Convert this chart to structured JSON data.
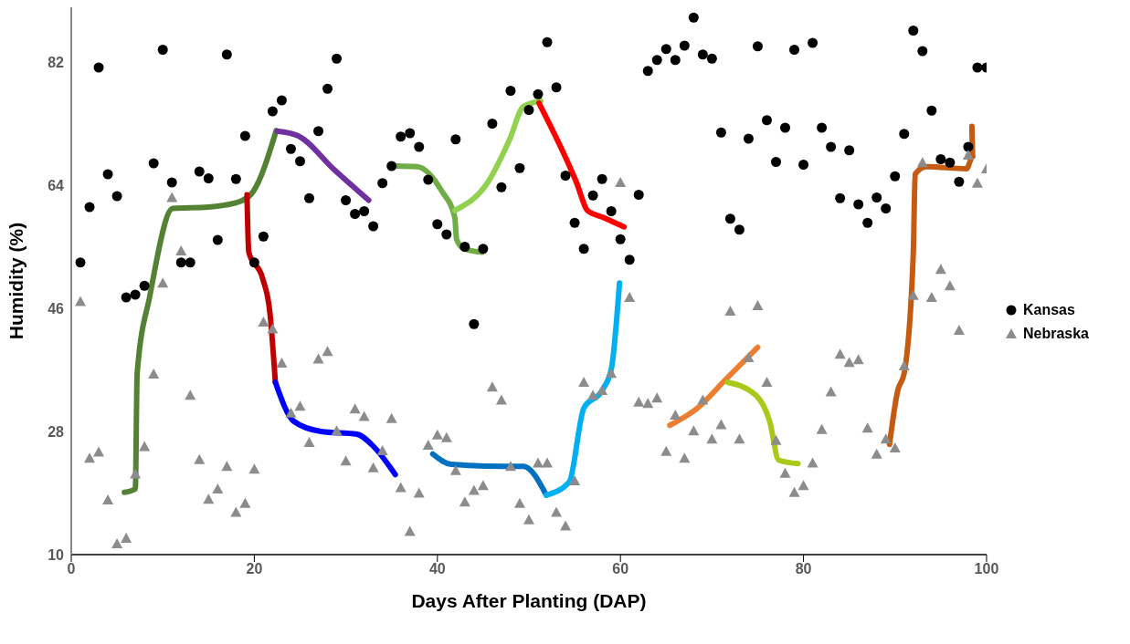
{
  "chart_data": {
    "type": "scatter",
    "xlabel": "Days After Planting (DAP)",
    "ylabel": "Humidity (%)",
    "xlim": [
      0,
      100
    ],
    "xticks": [
      0,
      20,
      40,
      60,
      80,
      100
    ],
    "ylim": [
      10,
      90
    ],
    "yticks": [
      10,
      28,
      46,
      64,
      82
    ],
    "grid": false,
    "legend": "right",
    "x": [
      1,
      2,
      3,
      4,
      5,
      6,
      7,
      8,
      9,
      10,
      11,
      12,
      13,
      14,
      15,
      16,
      17,
      18,
      19,
      20,
      21,
      22,
      23,
      24,
      25,
      26,
      27,
      28,
      29,
      30,
      31,
      32,
      33,
      34,
      35,
      36,
      37,
      38,
      39,
      40,
      41,
      42,
      43,
      44,
      45,
      46,
      47,
      48,
      49,
      50,
      51,
      52,
      53,
      54,
      55,
      56,
      57,
      58,
      59,
      60,
      61,
      62,
      63,
      64,
      65,
      66,
      67,
      68,
      69,
      70,
      71,
      72,
      73,
      74,
      75,
      76,
      77,
      78,
      79,
      80,
      81,
      82,
      83,
      84,
      85,
      86,
      87,
      88,
      89,
      90,
      91,
      92,
      93,
      94,
      95,
      96,
      97,
      98,
      99,
      100
    ],
    "series": [
      {
        "name": "Kansas",
        "marker": "circle",
        "color": "#000000",
        "values": [
          52.7,
          60.8,
          81.2,
          65.6,
          62.4,
          47.6,
          48.0,
          49.3,
          67.2,
          83.8,
          64.4,
          52.7,
          52.7,
          66.0,
          65.0,
          56.0,
          83.1,
          64.9,
          71.2,
          52.7,
          56.5,
          74.8,
          76.4,
          69.3,
          67.5,
          62.1,
          71.9,
          78.1,
          82.5,
          61.8,
          59.8,
          60.2,
          58.0,
          64.3,
          66.8,
          71.1,
          71.6,
          69.6,
          64.8,
          58.3,
          56.8,
          70.7,
          55.0,
          43.7,
          54.7,
          73.0,
          63.7,
          77.8,
          66.5,
          75.0,
          77.3,
          84.9,
          78.3,
          65.4,
          58.5,
          54.7,
          62.5,
          64.9,
          60.2,
          56.1,
          53.1,
          62.6,
          80.7,
          82.3,
          83.9,
          82.3,
          84.4,
          88.5,
          83.1,
          82.5,
          71.7,
          59.1,
          57.5,
          70.8,
          84.3,
          73.5,
          67.4,
          72.4,
          83.8,
          67.0,
          84.8,
          72.4,
          69.6,
          62.1,
          69.1,
          61.2,
          58.5,
          62.2,
          60.6,
          65.3,
          71.5,
          86.6,
          83.6,
          74.9,
          67.8,
          67.3,
          64.5,
          69.6,
          81.2,
          81.2
        ]
      },
      {
        "name": "Nebraska",
        "marker": "triangle",
        "color": "#8c8c8c",
        "values": [
          47.0,
          24.1,
          25.0,
          18.0,
          11.6,
          12.4,
          21.8,
          25.8,
          36.4,
          49.7,
          62.2,
          54.4,
          33.3,
          23.9,
          18.1,
          19.6,
          22.9,
          16.2,
          17.5,
          22.5,
          44.0,
          43.0,
          38.0,
          30.7,
          31.7,
          26.4,
          38.6,
          39.7,
          28.1,
          23.7,
          31.3,
          30.2,
          22.7,
          25.2,
          29.9,
          19.8,
          13.4,
          19.0,
          26.0,
          27.5,
          27.1,
          22.3,
          17.7,
          19.4,
          20.1,
          34.5,
          32.6,
          22.9,
          17.5,
          15.1,
          23.4,
          23.4,
          16.2,
          14.2,
          20.8,
          35.2,
          33.3,
          34.0,
          36.5,
          64.4,
          47.6,
          32.3,
          32.1,
          32.9,
          25.1,
          30.4,
          24.1,
          28.1,
          32.6,
          26.9,
          29.0,
          45.6,
          26.9,
          38.8,
          46.4,
          35.2,
          26.7,
          21.9,
          19.1,
          20.1,
          23.4,
          28.3,
          33.8,
          39.3,
          38.1,
          38.5,
          28.5,
          24.7,
          26.9,
          25.6,
          37.6,
          47.9,
          67.3,
          47.6,
          51.7,
          49.3,
          42.8,
          68.4,
          64.3,
          66.4
        ]
      },
      {
        "type": "line",
        "marker": "none",
        "color": "#548235",
        "x": [
          5.8,
          7.0,
          7.2,
          8.6,
          11.1,
          15.0,
          18.4,
          19.9,
          22.4
        ],
        "values": [
          19.1,
          19.6,
          36.5,
          47.9,
          60.6,
          60.8,
          61.6,
          63.1,
          72.0
        ]
      },
      {
        "type": "line",
        "marker": "none",
        "color": "#7030a0",
        "x": [
          22.5,
          24.8,
          28.7,
          32.5
        ],
        "values": [
          71.9,
          71.2,
          66.3,
          61.8
        ]
      },
      {
        "type": "line",
        "marker": "none",
        "color": "#c00000",
        "x": [
          19.2,
          19.4,
          20.9,
          21.7,
          22.3
        ],
        "values": [
          62.6,
          54.2,
          50.4,
          45.4,
          35.2
        ]
      },
      {
        "type": "line",
        "marker": "none",
        "color": "#0000ff",
        "x": [
          22.3,
          24.3,
          27.3,
          31.2,
          33.1,
          35.4
        ],
        "values": [
          35.2,
          29.5,
          28.0,
          27.6,
          25.7,
          21.7
        ]
      },
      {
        "type": "line",
        "marker": "none",
        "color": "#70ad47",
        "x": [
          35.6,
          37.8,
          40.5,
          41.9,
          42.1,
          42.9,
          44.9
        ],
        "values": [
          66.8,
          66.7,
          63.1,
          59.3,
          56.1,
          54.7,
          54.2
        ]
      },
      {
        "type": "line",
        "marker": "none",
        "color": "#92d050",
        "x": [
          41.9,
          45.5,
          47.9,
          49.4,
          51.3
        ],
        "values": [
          60.3,
          64.4,
          70.7,
          75.5,
          76.3
        ]
      },
      {
        "type": "line",
        "marker": "none",
        "color": "#ff0000",
        "x": [
          51.1,
          55.2,
          56.4,
          58.1,
          60.4
        ],
        "values": [
          76.0,
          64.4,
          60.3,
          59.3,
          57.9
        ]
      },
      {
        "type": "line",
        "marker": "none",
        "color": "#0070c0",
        "x": [
          39.5,
          41.5,
          47.4,
          49.4,
          51.9
        ],
        "values": [
          24.7,
          23.2,
          22.9,
          22.9,
          18.7
        ]
      },
      {
        "type": "line",
        "marker": "none",
        "color": "#00b0f0",
        "x": [
          51.9,
          54.4,
          56.0,
          58.0,
          59.0,
          59.9
        ],
        "values": [
          18.7,
          20.6,
          31.4,
          34.0,
          37.1,
          49.7
        ]
      },
      {
        "type": "line",
        "marker": "none",
        "color": "#ed7d31",
        "x": [
          65.4,
          68.4,
          71.5,
          75.0
        ],
        "values": [
          28.9,
          31.4,
          35.6,
          40.3
        ]
      },
      {
        "type": "line",
        "marker": "none",
        "color": "#a9c918",
        "x": [
          71.7,
          74.8,
          76.3,
          77.3,
          79.4
        ],
        "values": [
          35.2,
          33.3,
          29.5,
          23.8,
          23.3
        ]
      },
      {
        "type": "line",
        "marker": "none",
        "color": "#c55a11",
        "x": [
          89.4,
          90.3,
          91.0,
          92.0,
          92.2,
          93.4,
          97.8,
          98.5,
          98.4
        ],
        "values": [
          26.1,
          34.0,
          36.5,
          54.2,
          65.6,
          66.7,
          66.4,
          68.2,
          72.6
        ]
      }
    ]
  }
}
